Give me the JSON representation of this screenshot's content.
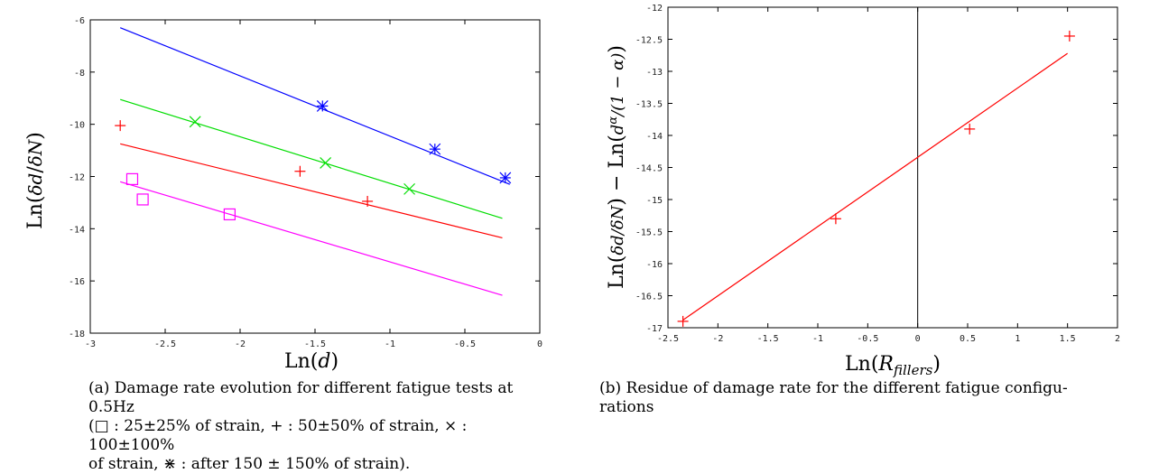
{
  "chart_data": [
    {
      "type": "scatter",
      "xlabel": "Ln(d)",
      "ylabel": "Ln(δd/δN)",
      "xlim": [
        -3,
        0
      ],
      "ylim": [
        -18,
        -6
      ],
      "xticks": [
        "-3",
        "-2.5",
        "-2",
        "-1.5",
        "-1",
        "-0.5",
        "0"
      ],
      "yticks": [
        "-18",
        "-16",
        "-14",
        "-12",
        "-10",
        "-8",
        "-6"
      ],
      "series": [
        {
          "marker": "square",
          "color": "#ff00ff",
          "points": [
            [
              -2.72,
              -12.1
            ],
            [
              -2.65,
              -12.88
            ],
            [
              -2.07,
              -13.45
            ]
          ],
          "fit": [
            [
              -2.8,
              -12.2
            ],
            [
              -0.25,
              -16.55
            ]
          ]
        },
        {
          "marker": "plus",
          "color": "#ff0000",
          "points": [
            [
              -2.8,
              -10.05
            ],
            [
              -1.6,
              -11.8
            ],
            [
              -1.15,
              -12.95
            ]
          ],
          "fit": [
            [
              -2.8,
              -10.75
            ],
            [
              -0.25,
              -14.35
            ]
          ]
        },
        {
          "marker": "cross",
          "color": "#00dd00",
          "points": [
            [
              -2.3,
              -9.9
            ],
            [
              -1.43,
              -11.48
            ],
            [
              -0.87,
              -12.48
            ]
          ],
          "fit": [
            [
              -2.8,
              -9.05
            ],
            [
              -0.25,
              -13.6
            ]
          ]
        },
        {
          "marker": "star",
          "color": "#0000ff",
          "points": [
            [
              -1.45,
              -9.3
            ],
            [
              -0.7,
              -10.95
            ],
            [
              -0.23,
              -12.05
            ]
          ],
          "fit": [
            [
              -2.8,
              -6.3
            ],
            [
              -0.2,
              -12.3
            ]
          ]
        }
      ],
      "caption": [
        "(a) Damage rate evolution for different fatigue tests at 0.5Hz",
        "(□ : 25±25% of strain, + : 50±50% of strain, × : 100±100%",
        "of strain, ⋇ : after 150 ± 150% of strain)."
      ]
    },
    {
      "type": "scatter",
      "xlabel": "Ln(R_fillers)",
      "ylabel": "Ln(δd/δN) − Ln(d^α/(1−α))",
      "xlim": [
        -2.5,
        2
      ],
      "ylim": [
        -17,
        -12
      ],
      "xticks": [
        "-2.5",
        "-2",
        "-1.5",
        "-1",
        "-0.5",
        "0",
        "0.5",
        "1",
        "1.5",
        "2"
      ],
      "yticks": [
        "-17",
        "-16.5",
        "-16",
        "-15.5",
        "-15",
        "-14.5",
        "-14",
        "-13.5",
        "-13",
        "-12.5",
        "-12"
      ],
      "vline_x": 0,
      "series": [
        {
          "marker": "plus",
          "color": "#ff0000",
          "points": [
            [
              -2.35,
              -16.9
            ],
            [
              -0.82,
              -15.3
            ],
            [
              0.52,
              -13.9
            ],
            [
              1.52,
              -12.45
            ]
          ],
          "fit": [
            [
              -2.35,
              -16.88
            ],
            [
              1.5,
              -12.72
            ]
          ]
        }
      ],
      "caption": [
        "(b) Residue of damage rate for the different fatigue configu-",
        "rations"
      ]
    }
  ]
}
